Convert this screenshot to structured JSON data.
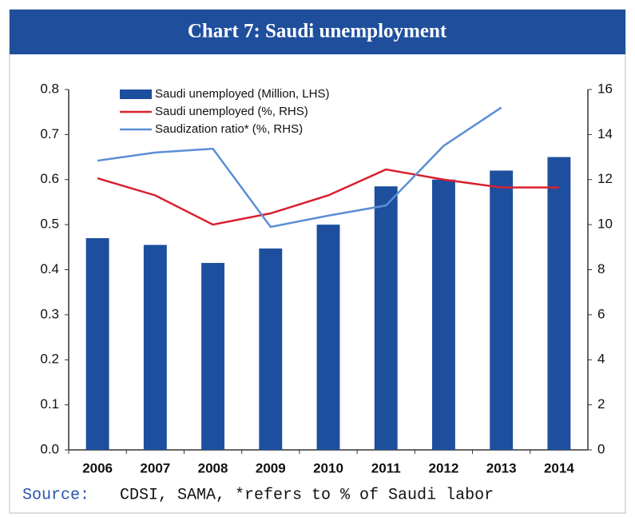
{
  "chart_data": {
    "type": "bar",
    "title": "Chart 7: Saudi unemployment",
    "source_label": "Source:",
    "source_text": "CDSI, SAMA, *refers to % of Saudi labor",
    "categories": [
      "2006",
      "2007",
      "2008",
      "2009",
      "2010",
      "2011",
      "2012",
      "2013",
      "2014"
    ],
    "series": [
      {
        "name": "Saudi unemployed (Million, LHS)",
        "type": "bar",
        "color": "#1d4f9e",
        "values": [
          0.47,
          0.455,
          0.415,
          0.447,
          0.5,
          0.585,
          0.6,
          0.62,
          0.65
        ]
      },
      {
        "name": "Saudi unemployed (%, RHS)",
        "type": "line",
        "axis": "y2",
        "color": "#d8202e",
        "values": [
          12.06,
          11.3,
          10.0,
          10.5,
          11.3,
          12.45,
          12.0,
          11.65,
          11.65
        ]
      },
      {
        "name": "Saudization ratio* (%, RHS)",
        "type": "line",
        "axis": "y2",
        "color": "#5b8ed6",
        "values": [
          12.84,
          13.2,
          13.37,
          9.9,
          10.4,
          10.85,
          13.5,
          15.2,
          null
        ]
      }
    ],
    "ylim": [
      0,
      0.8
    ],
    "yticks": [
      {
        "value": 0,
        "label": "0.0"
      },
      0.1,
      0.2,
      0.3,
      0.4,
      0.5,
      0.6,
      0.7,
      0.8
    ],
    "y2lim": [
      0,
      16
    ],
    "y2ticks": [
      0,
      2,
      4,
      6,
      8,
      10,
      12,
      14,
      16
    ],
    "grid": false,
    "legend": "top-left"
  }
}
